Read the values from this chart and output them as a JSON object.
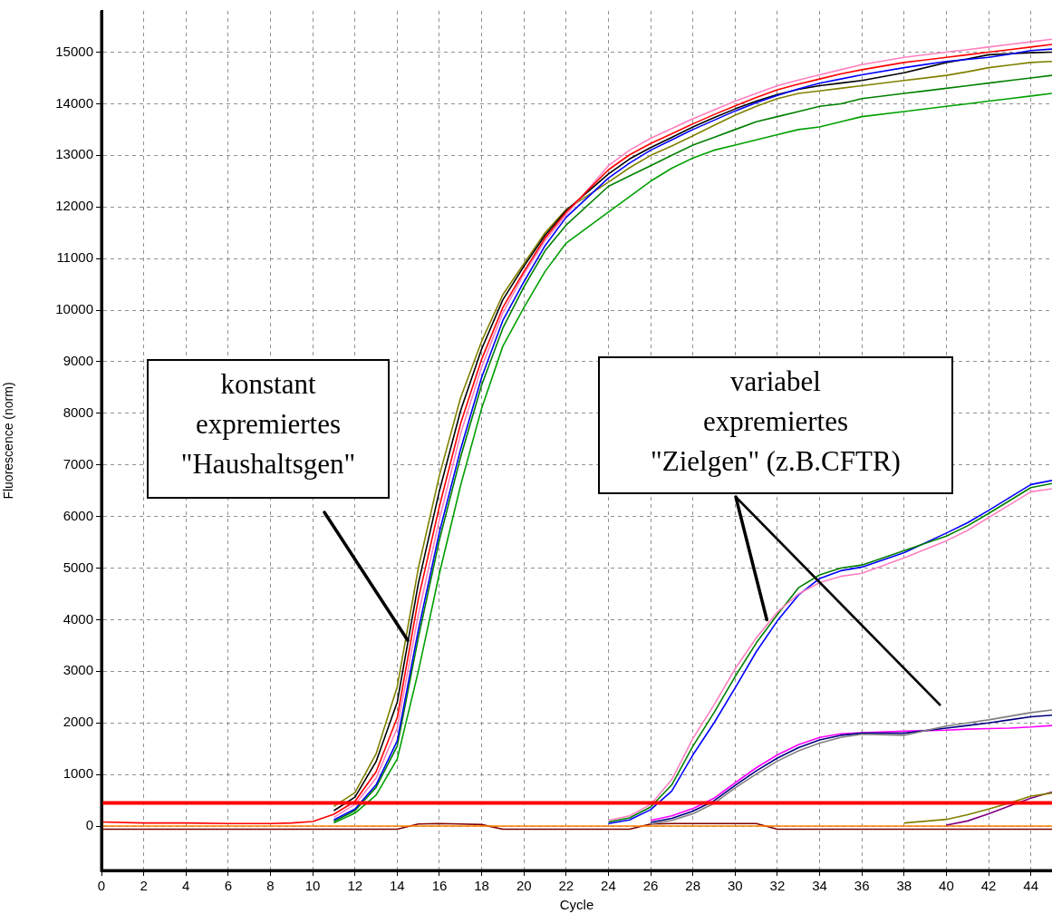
{
  "chart_data": {
    "type": "line",
    "xlabel": "Cycle",
    "ylabel": "Fluorescence (norm)",
    "x": [
      0,
      2,
      4,
      6,
      8,
      9,
      10,
      11,
      12,
      13,
      14,
      15,
      16,
      17,
      18,
      19,
      20,
      21,
      22,
      24,
      25,
      26,
      27,
      28,
      29,
      30,
      31,
      32,
      33,
      34,
      35,
      36,
      38,
      40,
      41,
      42,
      43,
      44,
      45
    ],
    "xlim": [
      0,
      45
    ],
    "xticks": [
      0,
      2,
      4,
      6,
      8,
      10,
      12,
      14,
      16,
      18,
      20,
      22,
      24,
      26,
      28,
      30,
      32,
      34,
      36,
      38,
      40,
      42,
      44
    ],
    "ylim": [
      -860,
      15800
    ],
    "yticks": [
      0,
      1000,
      2000,
      3000,
      4000,
      5000,
      6000,
      7000,
      8000,
      9000,
      10000,
      11000,
      12000,
      13000,
      14000,
      15000
    ],
    "grid": true,
    "legend": false,
    "marker": "none",
    "line_style": "solid",
    "ref_lines": [
      {
        "axis": "y",
        "value": 450,
        "color": "#ff0000"
      }
    ],
    "annotations": [
      {
        "text": "konstant expremiertes \"Haushaltsgen\"",
        "x": 14.5,
        "y": 3600
      },
      {
        "text": "variabel expremiertes \"Zielgen\" (z.B.CFTR)",
        "x": 31.5,
        "y": 4000
      }
    ],
    "series": [
      {
        "color": "#ff0000",
        "values": [
          80,
          60,
          60,
          50,
          50,
          60,
          90,
          230,
          480,
          1050,
          2100,
          4400,
          6200,
          7800,
          9050,
          10050,
          10750,
          11400,
          11900,
          12720,
          13010,
          13230,
          13420,
          13610,
          13790,
          13960,
          14120,
          14270,
          14380,
          14480,
          14580,
          14660,
          14800,
          14900,
          14950,
          15000,
          15050,
          15100,
          15150
        ]
      },
      {
        "color": "#ff80c0",
        "values": [
          null,
          null,
          null,
          null,
          null,
          null,
          null,
          170,
          420,
          930,
          1900,
          4100,
          5950,
          7600,
          8900,
          9950,
          10700,
          11350,
          11850,
          12800,
          13100,
          13330,
          13520,
          13710,
          13880,
          14050,
          14200,
          14350,
          14460,
          14560,
          14660,
          14760,
          14900,
          15000,
          15050,
          15100,
          15150,
          15200,
          15250
        ]
      },
      {
        "color": "#0000ff",
        "values": [
          null,
          null,
          null,
          null,
          null,
          null,
          null,
          120,
          330,
          800,
          1650,
          3800,
          5700,
          7300,
          8700,
          9800,
          10550,
          11250,
          11800,
          12560,
          12850,
          13100,
          13300,
          13500,
          13680,
          13860,
          14020,
          14160,
          14290,
          14400,
          14480,
          14560,
          14700,
          14820,
          14860,
          14900,
          14960,
          15030,
          15060
        ]
      },
      {
        "color": "#000000",
        "values": [
          null,
          null,
          null,
          null,
          null,
          null,
          null,
          300,
          560,
          1250,
          2400,
          4700,
          6500,
          8050,
          9250,
          10200,
          10850,
          11450,
          11930,
          12640,
          12930,
          13150,
          13350,
          13550,
          13730,
          13900,
          14050,
          14180,
          14280,
          14350,
          14400,
          14450,
          14600,
          14800,
          14870,
          14950,
          14970,
          14990,
          15000
        ]
      },
      {
        "color": "#808000",
        "values": [
          null,
          null,
          null,
          null,
          null,
          null,
          null,
          380,
          650,
          1400,
          2700,
          5000,
          6800,
          8300,
          9400,
          10300,
          10900,
          11500,
          11950,
          12480,
          12760,
          13000,
          13180,
          13380,
          13580,
          13780,
          13950,
          14100,
          14200,
          14250,
          14300,
          14350,
          14450,
          14550,
          14620,
          14700,
          14750,
          14800,
          14820
        ]
      },
      {
        "color": "#008000",
        "values": [
          null,
          null,
          null,
          null,
          null,
          null,
          null,
          90,
          300,
          750,
          1550,
          3650,
          5550,
          7150,
          8550,
          9650,
          10450,
          11150,
          11650,
          12400,
          12600,
          12800,
          13000,
          13200,
          13350,
          13500,
          13650,
          13750,
          13850,
          13950,
          14000,
          14100,
          14200,
          14300,
          14350,
          14400,
          14450,
          14500,
          14550
        ]
      },
      {
        "color": "#00a000",
        "values": [
          null,
          null,
          null,
          null,
          null,
          null,
          null,
          60,
          250,
          600,
          1300,
          3000,
          4900,
          6600,
          8100,
          9300,
          10050,
          10750,
          11300,
          11900,
          12200,
          12500,
          12750,
          12950,
          13100,
          13200,
          13300,
          13400,
          13500,
          13550,
          13650,
          13750,
          13850,
          13950,
          14000,
          14050,
          14100,
          14150,
          14200
        ]
      },
      {
        "color": "#ff80c0",
        "values": [
          null,
          null,
          null,
          null,
          null,
          null,
          null,
          null,
          null,
          null,
          null,
          null,
          null,
          null,
          null,
          null,
          null,
          null,
          null,
          110,
          200,
          420,
          900,
          1700,
          2350,
          3050,
          3650,
          4150,
          4500,
          4720,
          4840,
          4900,
          5200,
          5530,
          5730,
          5980,
          6230,
          6480,
          6540
        ]
      },
      {
        "color": "#008000",
        "values": [
          null,
          null,
          null,
          null,
          null,
          null,
          null,
          null,
          null,
          null,
          null,
          null,
          null,
          null,
          null,
          null,
          null,
          null,
          null,
          80,
          160,
          370,
          800,
          1550,
          2200,
          2900,
          3550,
          4100,
          4620,
          4870,
          5000,
          5060,
          5340,
          5620,
          5820,
          6060,
          6310,
          6560,
          6640
        ]
      },
      {
        "color": "#0000ff",
        "values": [
          null,
          null,
          null,
          null,
          null,
          null,
          null,
          null,
          null,
          null,
          null,
          null,
          null,
          null,
          null,
          null,
          null,
          null,
          null,
          50,
          120,
          320,
          680,
          1380,
          2000,
          2680,
          3380,
          3980,
          4480,
          4800,
          4950,
          5020,
          5300,
          5680,
          5880,
          6120,
          6370,
          6620,
          6700
        ]
      },
      {
        "color": "#808080",
        "values": [
          null,
          null,
          null,
          null,
          null,
          null,
          null,
          null,
          null,
          null,
          null,
          null,
          null,
          null,
          null,
          null,
          null,
          null,
          null,
          null,
          null,
          40,
          110,
          240,
          440,
          740,
          1010,
          1260,
          1460,
          1610,
          1720,
          1780,
          1760,
          1940,
          2000,
          2060,
          2130,
          2200,
          2250
        ]
      },
      {
        "color": "#000080",
        "values": [
          null,
          null,
          null,
          null,
          null,
          null,
          null,
          null,
          null,
          null,
          null,
          null,
          null,
          null,
          null,
          null,
          null,
          null,
          null,
          null,
          null,
          70,
          150,
          290,
          490,
          790,
          1070,
          1320,
          1520,
          1670,
          1760,
          1800,
          1800,
          1900,
          1950,
          2000,
          2060,
          2120,
          2150
        ]
      },
      {
        "color": "#ff00ff",
        "values": [
          null,
          null,
          null,
          null,
          null,
          null,
          null,
          null,
          null,
          null,
          null,
          null,
          null,
          null,
          null,
          null,
          null,
          null,
          null,
          null,
          null,
          110,
          200,
          340,
          540,
          840,
          1130,
          1380,
          1580,
          1720,
          1790,
          1810,
          1840,
          1860,
          1880,
          1890,
          1900,
          1920,
          1950
        ]
      },
      {
        "color": "#808000",
        "values": [
          null,
          null,
          null,
          null,
          null,
          null,
          null,
          null,
          null,
          null,
          null,
          null,
          null,
          null,
          null,
          null,
          null,
          null,
          null,
          null,
          null,
          null,
          null,
          null,
          null,
          null,
          null,
          null,
          null,
          null,
          null,
          null,
          60,
          130,
          220,
          330,
          450,
          580,
          640
        ]
      },
      {
        "color": "#800080",
        "values": [
          null,
          null,
          null,
          null,
          null,
          null,
          null,
          null,
          null,
          null,
          null,
          null,
          null,
          null,
          null,
          null,
          null,
          null,
          null,
          null,
          null,
          null,
          null,
          null,
          null,
          null,
          null,
          null,
          null,
          null,
          null,
          null,
          null,
          20,
          100,
          240,
          390,
          540,
          660
        ]
      },
      {
        "color": "#ff8000",
        "values": [
          0,
          0,
          0,
          0,
          0,
          0,
          0,
          0,
          0,
          0,
          0,
          0,
          0,
          0,
          0,
          0,
          0,
          0,
          0,
          0,
          0,
          0,
          0,
          0,
          0,
          0,
          0,
          0,
          0,
          0,
          0,
          0,
          0,
          0,
          0,
          0,
          0,
          0,
          0
        ]
      },
      {
        "color": "#800000",
        "values": [
          -60,
          -60,
          -60,
          -60,
          -60,
          -60,
          -60,
          -60,
          -60,
          -60,
          -60,
          40,
          50,
          40,
          30,
          -60,
          -60,
          -60,
          -60,
          -60,
          -60,
          40,
          50,
          50,
          50,
          50,
          50,
          -60,
          -60,
          -60,
          -60,
          -60,
          -60,
          -60,
          -60,
          -60,
          -60,
          -60,
          -60
        ]
      }
    ]
  }
}
